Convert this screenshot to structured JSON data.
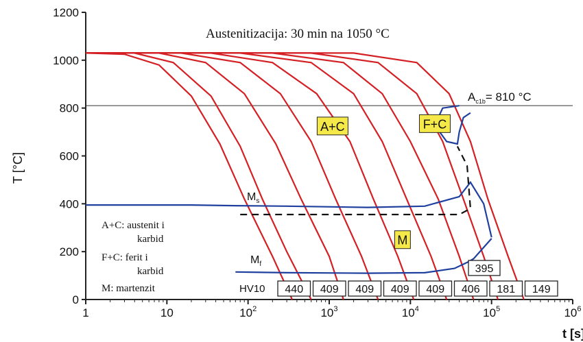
{
  "chart_data": {
    "type": "line",
    "title": "Austenitizacija: 30 min na 1050 °C",
    "xlabel": "t [s]",
    "ylabel": "T [°C]",
    "xscale": "log",
    "xlim": [
      1,
      1000000
    ],
    "ylim": [
      0,
      1200
    ],
    "grid": false,
    "x_ticks": [
      {
        "value": 1,
        "label": "1"
      },
      {
        "value": 10,
        "label": "10"
      },
      {
        "value": 100,
        "label": "10",
        "exp": "2"
      },
      {
        "value": 1000,
        "label": "10",
        "exp": "3"
      },
      {
        "value": 10000,
        "label": "10",
        "exp": "4"
      },
      {
        "value": 100000,
        "label": "10",
        "exp": "5"
      },
      {
        "value": 1000000,
        "label": "10",
        "exp": "6"
      }
    ],
    "y_ticks": [
      {
        "value": 0,
        "label": "0"
      },
      {
        "value": 200,
        "label": "200"
      },
      {
        "value": 400,
        "label": "400"
      },
      {
        "value": 600,
        "label": "600"
      },
      {
        "value": 800,
        "label": "800"
      },
      {
        "value": 1000,
        "label": "1000"
      },
      {
        "value": 1200,
        "label": "1200"
      }
    ],
    "ac1b": {
      "value": 810,
      "label_main": "A",
      "label_sub": "c1b",
      "label_rest": "= 810 °C"
    },
    "cooling_curves": [
      {
        "points": [
          [
            1,
            1030
          ],
          [
            3,
            1025
          ],
          [
            8,
            980
          ],
          [
            20,
            850
          ],
          [
            45,
            650
          ],
          [
            90,
            420
          ],
          [
            200,
            180
          ],
          [
            350,
            0
          ]
        ]
      },
      {
        "points": [
          [
            1,
            1030
          ],
          [
            4,
            1030
          ],
          [
            12,
            990
          ],
          [
            35,
            850
          ],
          [
            80,
            640
          ],
          [
            150,
            420
          ],
          [
            300,
            200
          ],
          [
            600,
            0
          ]
        ]
      },
      {
        "points": [
          [
            1,
            1030
          ],
          [
            8,
            1030
          ],
          [
            30,
            990
          ],
          [
            90,
            860
          ],
          [
            220,
            650
          ],
          [
            450,
            420
          ],
          [
            1000,
            180
          ],
          [
            1500,
            0
          ]
        ]
      },
      {
        "points": [
          [
            1,
            1030
          ],
          [
            15,
            1030
          ],
          [
            80,
            990
          ],
          [
            250,
            860
          ],
          [
            600,
            660
          ],
          [
            1200,
            420
          ],
          [
            2500,
            180
          ],
          [
            4000,
            0
          ]
        ]
      },
      {
        "points": [
          [
            1,
            1030
          ],
          [
            35,
            1030
          ],
          [
            200,
            990
          ],
          [
            700,
            860
          ],
          [
            1800,
            660
          ],
          [
            3500,
            420
          ],
          [
            7000,
            180
          ],
          [
            11000,
            0
          ]
        ]
      },
      {
        "points": [
          [
            1,
            1030
          ],
          [
            80,
            1030
          ],
          [
            600,
            990
          ],
          [
            2000,
            860
          ],
          [
            4500,
            660
          ],
          [
            9000,
            420
          ],
          [
            18000,
            180
          ],
          [
            28000,
            0
          ]
        ]
      },
      {
        "points": [
          [
            1,
            1030
          ],
          [
            200,
            1030
          ],
          [
            1500,
            990
          ],
          [
            4500,
            860
          ],
          [
            10000,
            660
          ],
          [
            22000,
            420
          ],
          [
            40000,
            180
          ],
          [
            60000,
            0
          ]
        ]
      },
      {
        "points": [
          [
            1,
            1030
          ],
          [
            600,
            1030
          ],
          [
            4000,
            990
          ],
          [
            12000,
            860
          ],
          [
            25000,
            660
          ],
          [
            45000,
            420
          ],
          [
            80000,
            180
          ],
          [
            120000,
            0
          ]
        ]
      },
      {
        "points": [
          [
            1,
            1030
          ],
          [
            2000,
            1030
          ],
          [
            12000,
            990
          ],
          [
            30000,
            860
          ],
          [
            55000,
            660
          ],
          [
            90000,
            420
          ],
          [
            160000,
            180
          ],
          [
            250000,
            0
          ]
        ]
      }
    ],
    "ms_line": {
      "label": "M",
      "sub": "s",
      "points": [
        [
          1,
          395
        ],
        [
          20,
          395
        ],
        [
          70,
          392
        ],
        [
          300,
          390
        ],
        [
          3000,
          385
        ],
        [
          15000,
          390
        ],
        [
          40000,
          430
        ],
        [
          55000,
          490
        ],
        [
          80000,
          400
        ],
        [
          100000,
          260
        ]
      ]
    },
    "mf_line": {
      "label": "M",
      "sub": "f",
      "points": [
        [
          70,
          115
        ],
        [
          300,
          112
        ],
        [
          3000,
          110
        ],
        [
          15000,
          112
        ],
        [
          35000,
          130
        ],
        [
          50000,
          155
        ],
        [
          60000,
          170
        ],
        [
          100000,
          255
        ]
      ]
    },
    "dashed_line": [
      [
        80,
        355
      ],
      [
        40000,
        355
      ],
      [
        55000,
        380
      ],
      [
        50000,
        560
      ],
      [
        38000,
        640
      ]
    ],
    "fc_region": {
      "points": [
        [
          40000,
          810
        ],
        [
          25000,
          800
        ],
        [
          22000,
          760
        ],
        [
          23000,
          700
        ],
        [
          28000,
          660
        ],
        [
          38000,
          650
        ],
        [
          40000,
          700
        ],
        [
          45000,
          760
        ],
        [
          55000,
          780
        ]
      ]
    },
    "regions": [
      {
        "label": "A+C",
        "x": 1100,
        "y": 725
      },
      {
        "label": "F+C",
        "x": 20000,
        "y": 735
      },
      {
        "label": "M",
        "x": 8000,
        "y": 250
      }
    ],
    "hardness": {
      "label": "HV10",
      "values": [
        "440",
        "409",
        "409",
        "409",
        "409",
        "406",
        "181",
        "149"
      ],
      "extra_value": "395"
    },
    "legend": [
      "A+C: austenit i",
      "karbid",
      "F+C: ferit i",
      "karbid",
      "M: martenzit"
    ],
    "colors": {
      "curve": "#d42024",
      "blue": "#1f3f9e",
      "box": "#f5e94a",
      "axis": "#222222"
    }
  }
}
